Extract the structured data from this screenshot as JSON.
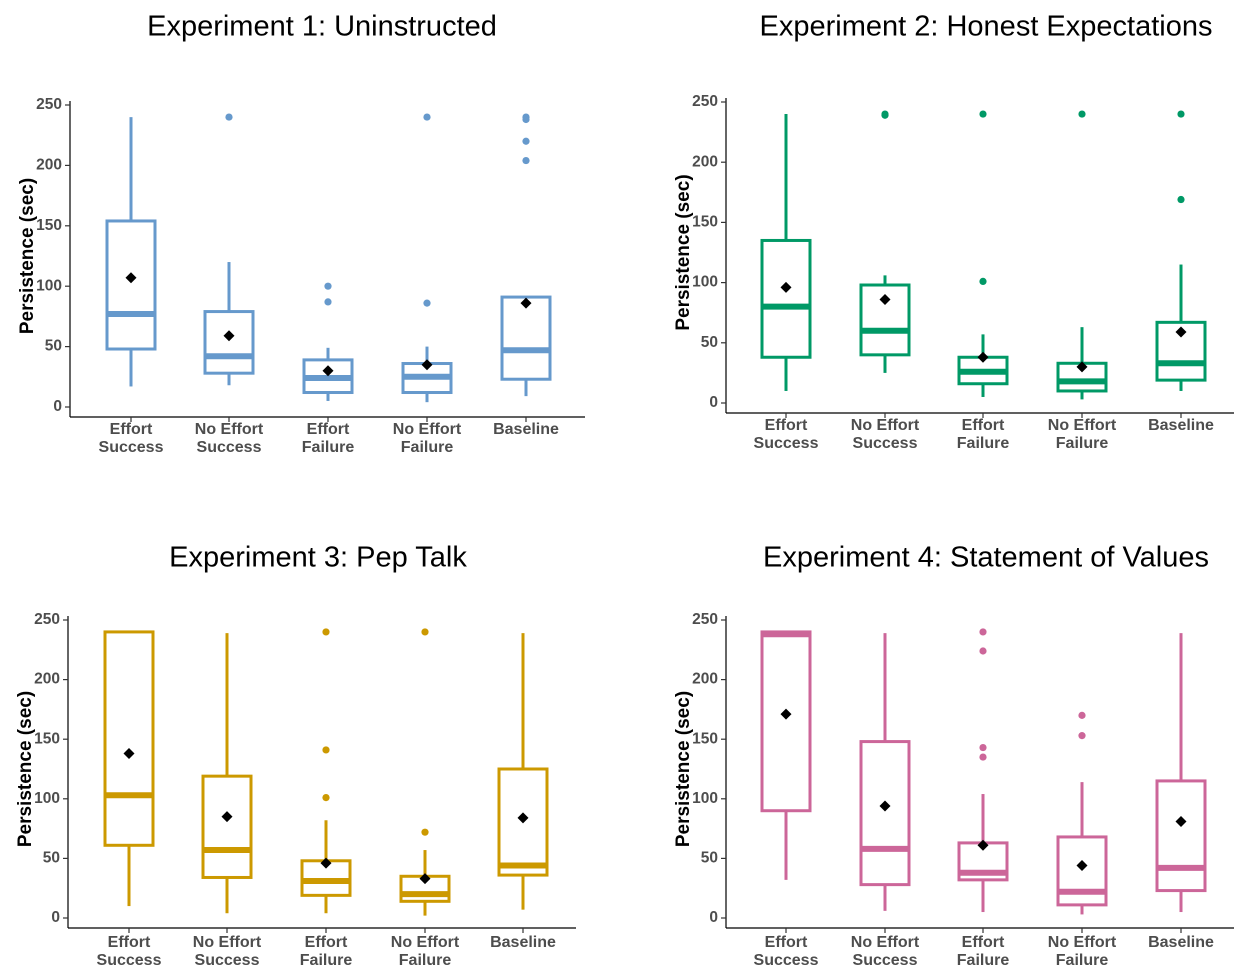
{
  "chart_data": [
    {
      "type": "boxplot",
      "title": "Experiment 1: Uninstructed",
      "ylabel": "Persistence (sec)",
      "xlabel": "",
      "ylim": [
        0,
        250
      ],
      "yticks": [
        0,
        50,
        100,
        150,
        200,
        250
      ],
      "color": "#6699CC",
      "categories": [
        "Effort\nSuccess",
        "No Effort\nSuccess",
        "Effort\nFailure",
        "No Effort\nFailure",
        "Baseline"
      ],
      "boxes": [
        {
          "whisker_low": 17,
          "q1": 48,
          "median": 77,
          "q3": 154,
          "whisker_high": 240,
          "mean": 107,
          "outliers": []
        },
        {
          "whisker_low": 18,
          "q1": 28,
          "median": 42,
          "q3": 79,
          "whisker_high": 120,
          "mean": 59,
          "outliers": [
            240
          ]
        },
        {
          "whisker_low": 5,
          "q1": 12,
          "median": 24,
          "q3": 39,
          "whisker_high": 49,
          "mean": 30,
          "outliers": [
            100,
            87
          ]
        },
        {
          "whisker_low": 4,
          "q1": 12,
          "median": 25,
          "q3": 36,
          "whisker_high": 50,
          "mean": 35,
          "outliers": [
            240,
            86
          ]
        },
        {
          "whisker_low": 9,
          "q1": 23,
          "median": 47,
          "q3": 91,
          "whisker_high": 91,
          "mean": 86,
          "outliers": [
            240,
            238,
            220,
            204
          ]
        }
      ]
    },
    {
      "type": "boxplot",
      "title": "Experiment 2: Honest Expectations",
      "ylabel": "Persistence (sec)",
      "xlabel": "",
      "ylim": [
        0,
        250
      ],
      "yticks": [
        0,
        50,
        100,
        150,
        200,
        250
      ],
      "color": "#009966",
      "categories": [
        "Effort\nSuccess",
        "No Effort\nSuccess",
        "Effort\nFailure",
        "No Effort\nFailure",
        "Baseline"
      ],
      "boxes": [
        {
          "whisker_low": 10,
          "q1": 38,
          "median": 80,
          "q3": 135,
          "whisker_high": 240,
          "mean": 96,
          "outliers": []
        },
        {
          "whisker_low": 25,
          "q1": 40,
          "median": 60,
          "q3": 98,
          "whisker_high": 106,
          "mean": 86,
          "outliers": [
            240,
            239
          ]
        },
        {
          "whisker_low": 5,
          "q1": 16,
          "median": 26,
          "q3": 38,
          "whisker_high": 57,
          "mean": 38,
          "outliers": [
            240,
            101
          ]
        },
        {
          "whisker_low": 3,
          "q1": 10,
          "median": 18,
          "q3": 33,
          "whisker_high": 63,
          "mean": 30,
          "outliers": [
            240
          ]
        },
        {
          "whisker_low": 10,
          "q1": 19,
          "median": 33,
          "q3": 67,
          "whisker_high": 115,
          "mean": 59,
          "outliers": [
            240,
            169
          ]
        }
      ]
    },
    {
      "type": "boxplot",
      "title": "Experiment 3: Pep Talk",
      "ylabel": "Persistence (sec)",
      "xlabel": "",
      "ylim": [
        0,
        250
      ],
      "yticks": [
        0,
        50,
        100,
        150,
        200,
        250
      ],
      "color": "#CC9900",
      "categories": [
        "Effort\nSuccess",
        "No Effort\nSuccess",
        "Effort\nFailure",
        "No Effort\nFailure",
        "Baseline"
      ],
      "boxes": [
        {
          "whisker_low": 10,
          "q1": 61,
          "median": 103,
          "q3": 240,
          "whisker_high": 240,
          "mean": 138,
          "outliers": []
        },
        {
          "whisker_low": 4,
          "q1": 34,
          "median": 57,
          "q3": 119,
          "whisker_high": 239,
          "mean": 85,
          "outliers": []
        },
        {
          "whisker_low": 4,
          "q1": 19,
          "median": 31,
          "q3": 48,
          "whisker_high": 82,
          "mean": 46,
          "outliers": [
            240,
            141,
            101
          ]
        },
        {
          "whisker_low": 2,
          "q1": 14,
          "median": 20,
          "q3": 35,
          "whisker_high": 57,
          "mean": 33,
          "outliers": [
            240,
            72
          ]
        },
        {
          "whisker_low": 7,
          "q1": 36,
          "median": 44,
          "q3": 125,
          "whisker_high": 239,
          "mean": 84,
          "outliers": []
        }
      ]
    },
    {
      "type": "boxplot",
      "title": "Experiment 4: Statement of Values",
      "ylabel": "Persistence (sec)",
      "xlabel": "",
      "ylim": [
        0,
        250
      ],
      "yticks": [
        0,
        50,
        100,
        150,
        200,
        250
      ],
      "color": "#CC6699",
      "categories": [
        "Effort\nSuccess",
        "No Effort\nSuccess",
        "Effort\nFailure",
        "No Effort\nFailure",
        "Baseline"
      ],
      "boxes": [
        {
          "whisker_low": 32,
          "q1": 90,
          "median": 238,
          "q3": 240,
          "whisker_high": 240,
          "mean": 171,
          "outliers": []
        },
        {
          "whisker_low": 6,
          "q1": 28,
          "median": 58,
          "q3": 148,
          "whisker_high": 239,
          "mean": 94,
          "outliers": []
        },
        {
          "whisker_low": 5,
          "q1": 32,
          "median": 38,
          "q3": 63,
          "whisker_high": 104,
          "mean": 61,
          "outliers": [
            240,
            224,
            143,
            135
          ]
        },
        {
          "whisker_low": 3,
          "q1": 11,
          "median": 22,
          "q3": 68,
          "whisker_high": 114,
          "mean": 44,
          "outliers": [
            170,
            153
          ]
        },
        {
          "whisker_low": 5,
          "q1": 23,
          "median": 42,
          "q3": 115,
          "whisker_high": 239,
          "mean": 81,
          "outliers": []
        }
      ]
    }
  ]
}
